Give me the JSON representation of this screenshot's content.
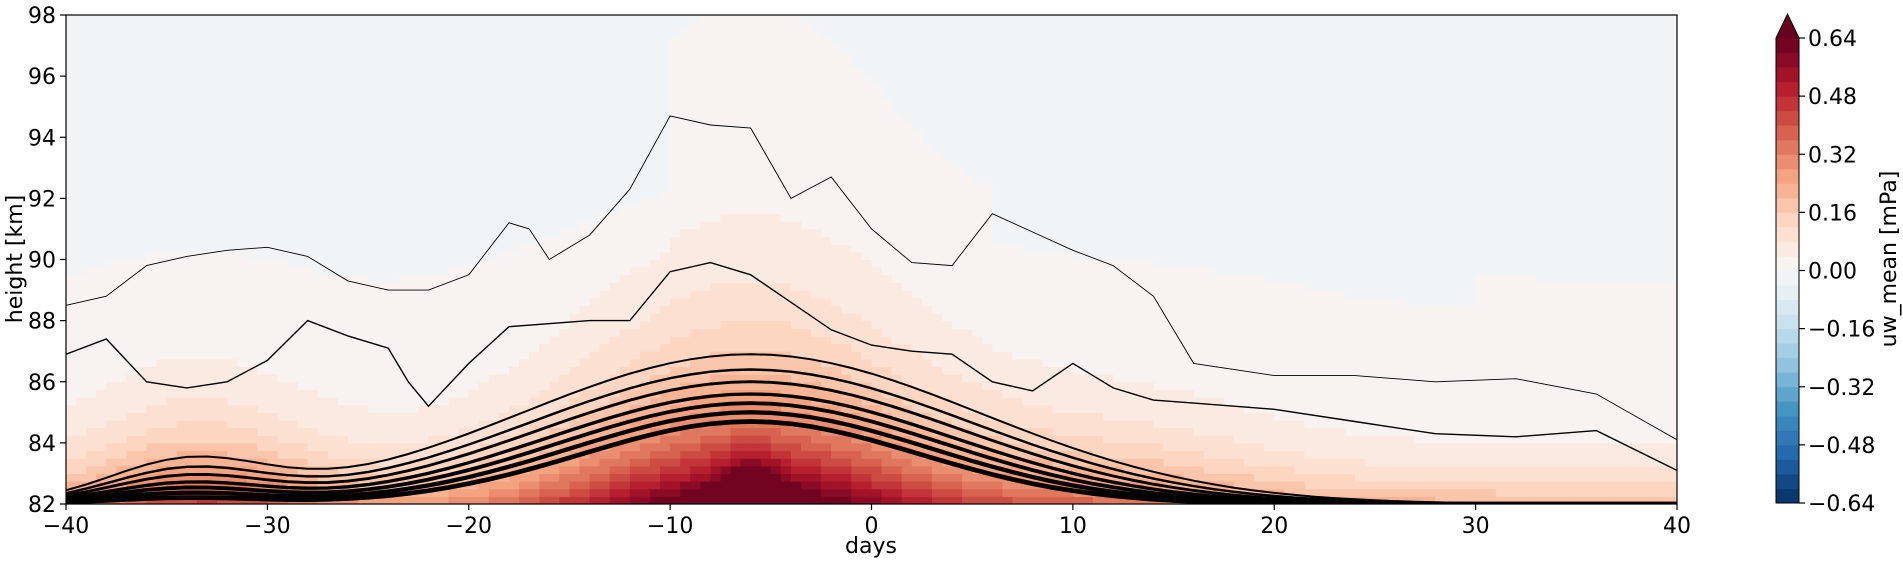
{
  "chart_data": {
    "type": "heatmap",
    "title": "",
    "xlabel": "days",
    "ylabel": "height [km]",
    "xlim": [
      -40,
      40
    ],
    "ylim": [
      82,
      98
    ],
    "x_ticks": [
      -40,
      -30,
      -20,
      -10,
      0,
      10,
      20,
      30,
      40
    ],
    "x_tick_labels": [
      "−40",
      "−30",
      "−20",
      "−10",
      "0",
      "10",
      "20",
      "30",
      "40"
    ],
    "y_ticks": [
      82,
      84,
      86,
      88,
      90,
      92,
      94,
      96,
      98
    ],
    "y_tick_labels": [
      "82",
      "84",
      "86",
      "88",
      "90",
      "92",
      "94",
      "96",
      "98"
    ],
    "colorbar": {
      "label": "uw_mean [mPa]",
      "colormap": "RdBu_r",
      "range": [
        -0.64,
        0.64
      ],
      "extend": "max",
      "ticks": [
        -0.64,
        -0.48,
        -0.32,
        -0.16,
        0.0,
        0.16,
        0.32,
        0.48,
        0.64
      ],
      "tick_labels": [
        "−0.64",
        "−0.48",
        "−0.32",
        "−0.16",
        "0.00",
        "0.16",
        "0.32",
        "0.48",
        "0.64"
      ],
      "levels": 32,
      "colors": {
        "low": "#053061",
        "mid": "#f7f7f7",
        "high": "#67001f",
        "extend_high": "#67001f"
      }
    },
    "field": {
      "description_values": "uw_mean filled contours; strongly positive near 82 km, peak near day -6, near-zero above ~88 km, slightly negative band in upper region",
      "peak_day": -6,
      "peak_value": 0.64
    },
    "contour_lines": [
      {
        "level": 1,
        "x": [
          -40,
          -38,
          -36,
          -34,
          -32,
          -30,
          -28,
          -26,
          -24,
          -22,
          -20,
          -18,
          -17,
          -16,
          -14,
          -12,
          -10,
          -8,
          -6,
          -4,
          -2,
          0,
          2,
          4,
          6,
          8,
          10,
          12,
          14,
          16,
          20,
          24,
          28,
          32,
          36,
          40
        ],
        "y": [
          88.5,
          88.8,
          89.8,
          90.1,
          90.3,
          90.4,
          90.1,
          89.3,
          89.0,
          89.0,
          89.5,
          91.2,
          91.0,
          90.0,
          90.8,
          92.3,
          94.7,
          94.4,
          94.3,
          92.0,
          92.7,
          91.0,
          89.9,
          89.8,
          91.5,
          90.9,
          90.3,
          89.8,
          88.8,
          86.6,
          86.2,
          86.2,
          86.0,
          86.1,
          85.6,
          84.1
        ]
      },
      {
        "level": 2,
        "x": [
          -40,
          -38,
          -36,
          -34,
          -32,
          -30,
          -28,
          -26,
          -24,
          -23,
          -22,
          -20,
          -18,
          -14,
          -12,
          -10,
          -8,
          -6,
          -4,
          -2,
          0,
          2,
          4,
          6,
          8,
          10,
          12,
          14,
          16,
          20,
          24,
          28,
          32,
          36,
          40
        ],
        "y": [
          86.9,
          87.4,
          86.0,
          85.8,
          86.0,
          86.7,
          88.0,
          87.5,
          87.1,
          86.0,
          85.2,
          86.6,
          87.8,
          88.0,
          88.0,
          89.6,
          89.9,
          89.5,
          88.6,
          87.7,
          87.2,
          87.0,
          86.9,
          86.0,
          85.7,
          86.6,
          85.8,
          85.4,
          85.3,
          85.1,
          84.7,
          84.3,
          84.2,
          84.4,
          83.1
        ]
      }
    ]
  }
}
